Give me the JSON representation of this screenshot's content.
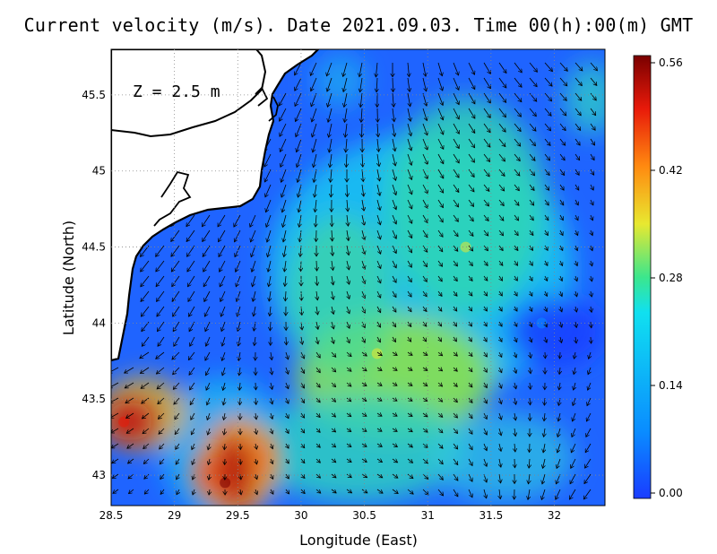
{
  "title": "Current velocity (m/s). Date 2021.09.03. Time 00(h):00(m) GMT",
  "depth_label": "Z = 2.5 m",
  "axes": {
    "xlabel": "Longitude (East)",
    "ylabel": "Latitude (North)",
    "xlim": [
      28.5,
      32.4
    ],
    "ylim": [
      42.8,
      45.8
    ],
    "xticks": [
      "28.5",
      "29",
      "29.5",
      "30",
      "30.5",
      "31",
      "31.5",
      "32"
    ],
    "yticks": [
      "43",
      "43.5",
      "44",
      "44.5",
      "45",
      "45.5"
    ]
  },
  "colorbar": {
    "ticks": [
      "0.56",
      "0.42",
      "0.28",
      "0.14",
      "0.00"
    ],
    "min": 0.0,
    "max": 0.56,
    "colors": [
      "#1a3cff",
      "#0a8cff",
      "#10e0f0",
      "#3ce68c",
      "#e8e830",
      "#ff8a10",
      "#e81a0a",
      "#7a0000"
    ]
  },
  "chart_data": {
    "type": "vector-field",
    "variable": "Current velocity (m/s)",
    "date": "2021.09.03",
    "time": "00(h):00(m) GMT",
    "depth": "Z = 2.5 m",
    "speed_hotspots": [
      {
        "lon": 28.6,
        "lat": 43.35,
        "speed": 0.52
      },
      {
        "lon": 29.4,
        "lat": 42.95,
        "speed": 0.53
      },
      {
        "lon": 30.6,
        "lat": 43.8,
        "speed": 0.33
      },
      {
        "lon": 31.3,
        "lat": 44.5,
        "speed": 0.3
      },
      {
        "lon": 31.9,
        "lat": 44.0,
        "speed": 0.09
      }
    ],
    "grid": "dotted"
  }
}
